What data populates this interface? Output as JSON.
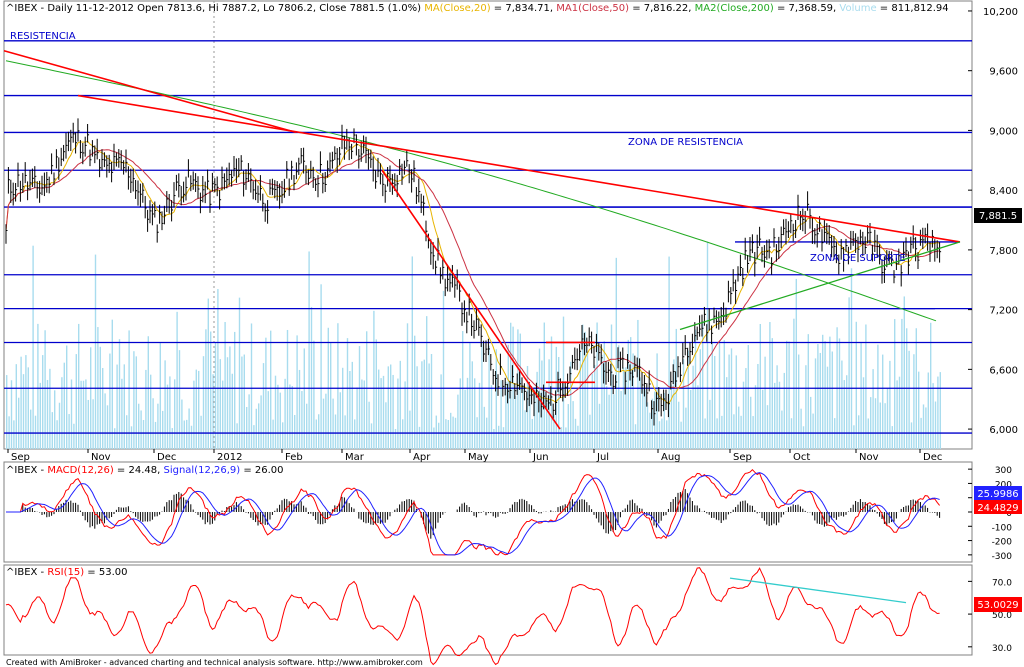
{
  "header": {
    "symbol": "^IBEX",
    "info": " - Daily 11-12-2012 Open 7813.6, Hi 7887.2, Lo 7806.2, Close 7881.5 (1.0%) ",
    "ma20": "MA(Close,20)",
    "ma20_val": " = 7,834.71, ",
    "ma50": "MA1(Close,50)",
    "ma50_val": " = 7,816.22, ",
    "ma200": "MA2(Close,200)",
    "ma200_val": " = 7,368.59, ",
    "vol": "Volume",
    "vol_val": " = 811,812.94"
  },
  "macd_header": {
    "prefix": "^IBEX - ",
    "macd": "MACD(12,26)",
    "macd_val": " = 24.48, ",
    "signal": "Signal(12,26,9)",
    "signal_val": " = 26.00"
  },
  "rsi_header": {
    "prefix": "^IBEX - ",
    "rsi": "RSI(15)",
    "rsi_val": " = 53.00"
  },
  "annotations": {
    "resistencia": "RESISTENCIA",
    "zona_resistencia": "ZONA DE RESISTENCIA",
    "zona_suporte": "ZONA DE SUPORTE"
  },
  "price_badge": "7,881.5",
  "macd_badges": {
    "macd": "24.4829",
    "signal": "25.9986"
  },
  "rsi_badge": "53.0029",
  "footer": "Created with AmiBroker - advanced charting and technical analysis software. http://www.amibroker.com",
  "colors": {
    "price": "#000000",
    "ma20": "#e8b400",
    "ma50": "#cc3344",
    "ma200": "#22aa22",
    "volume": "#a8dcee",
    "hline": "#0000cc",
    "trend": "#ff0000",
    "macd": "#ff0000",
    "signal": "#2222ff",
    "rsi": "#ff0000",
    "rsi_trend": "#33cccc"
  },
  "chart_data": [
    {
      "type": "line",
      "title": "^IBEX Daily",
      "x_ticks": [
        "Sep",
        "Nov",
        "Dec",
        "2012",
        "Feb",
        "Mar",
        "Apr",
        "May",
        "Jun",
        "Jul",
        "Aug",
        "Sep",
        "Oct",
        "Nov",
        "Dec"
      ],
      "y_ticks": [
        6000,
        6600,
        7200,
        7800,
        8400,
        9000,
        9600,
        10200
      ],
      "ylim": [
        5800,
        10300
      ],
      "horizontal_levels": [
        9900,
        9350,
        8980,
        8600,
        8230,
        7550,
        7210,
        6870,
        6410,
        5960
      ],
      "monthly_close": [
        {
          "month": "Sep",
          "close": 8300
        },
        {
          "month": "Oct",
          "close": 8900
        },
        {
          "month": "Nov",
          "close": 8200
        },
        {
          "month": "Dec",
          "close": 8500
        },
        {
          "month": "Jan",
          "close": 8400
        },
        {
          "month": "Feb",
          "close": 8800
        },
        {
          "month": "Mar",
          "close": 8500
        },
        {
          "month": "Apr",
          "close": 7100
        },
        {
          "month": "May",
          "close": 6200
        },
        {
          "month": "Jun",
          "close": 6800
        },
        {
          "month": "Jul",
          "close": 6300
        },
        {
          "month": "Aug",
          "close": 7400
        },
        {
          "month": "Sep",
          "close": 8100
        },
        {
          "month": "Oct",
          "close": 7800
        },
        {
          "month": "Nov",
          "close": 7700
        },
        {
          "month": "Dec",
          "close": 7881.5
        }
      ]
    },
    {
      "type": "line",
      "title": "MACD(12,26) / Signal(12,26,9)",
      "y_ticks": [
        300,
        200,
        100,
        0,
        -100,
        -200,
        -300
      ],
      "ylim": [
        -350,
        350
      ]
    },
    {
      "type": "line",
      "title": "RSI(15)",
      "y_ticks": [
        70.0,
        50.0,
        30.0
      ],
      "ylim": [
        25,
        80
      ]
    }
  ]
}
